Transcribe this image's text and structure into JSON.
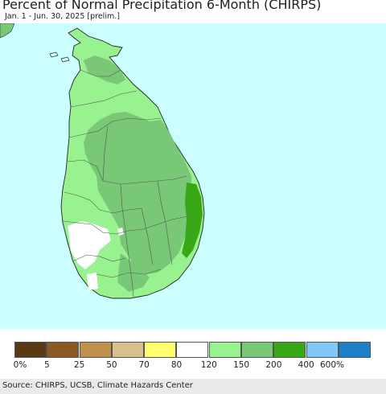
{
  "title": "Percent of Normal Precipitation 6-Month (CHIRPS)",
  "subtitle": "Jan. 1 - Jun. 30, 2025 [prelim.]",
  "legend": [
    {
      "label": "0%",
      "color": "#5a3a14"
    },
    {
      "label": "5",
      "color": "#8b5a24"
    },
    {
      "label": "25",
      "color": "#c0914c"
    },
    {
      "label": "50",
      "color": "#d6c08c"
    },
    {
      "label": "70",
      "color": "#ffff70"
    },
    {
      "label": "80",
      "color": "#ffffff"
    },
    {
      "label": "120",
      "color": "#98f290"
    },
    {
      "label": "150",
      "color": "#78c878"
    },
    {
      "label": "200",
      "color": "#38a818"
    },
    {
      "label": "400",
      "color": "#80c8f8"
    },
    {
      "label": "600%",
      "color": "#1e7ec8"
    }
  ],
  "colors": {
    "ocean": "#ccffff",
    "light_green": "#98f290",
    "medium_green": "#78c878",
    "dark_green": "#38a818",
    "normal_white": "#ffffff"
  },
  "source": "Source: CHIRPS, UCSB, Climate Hazards Center"
}
